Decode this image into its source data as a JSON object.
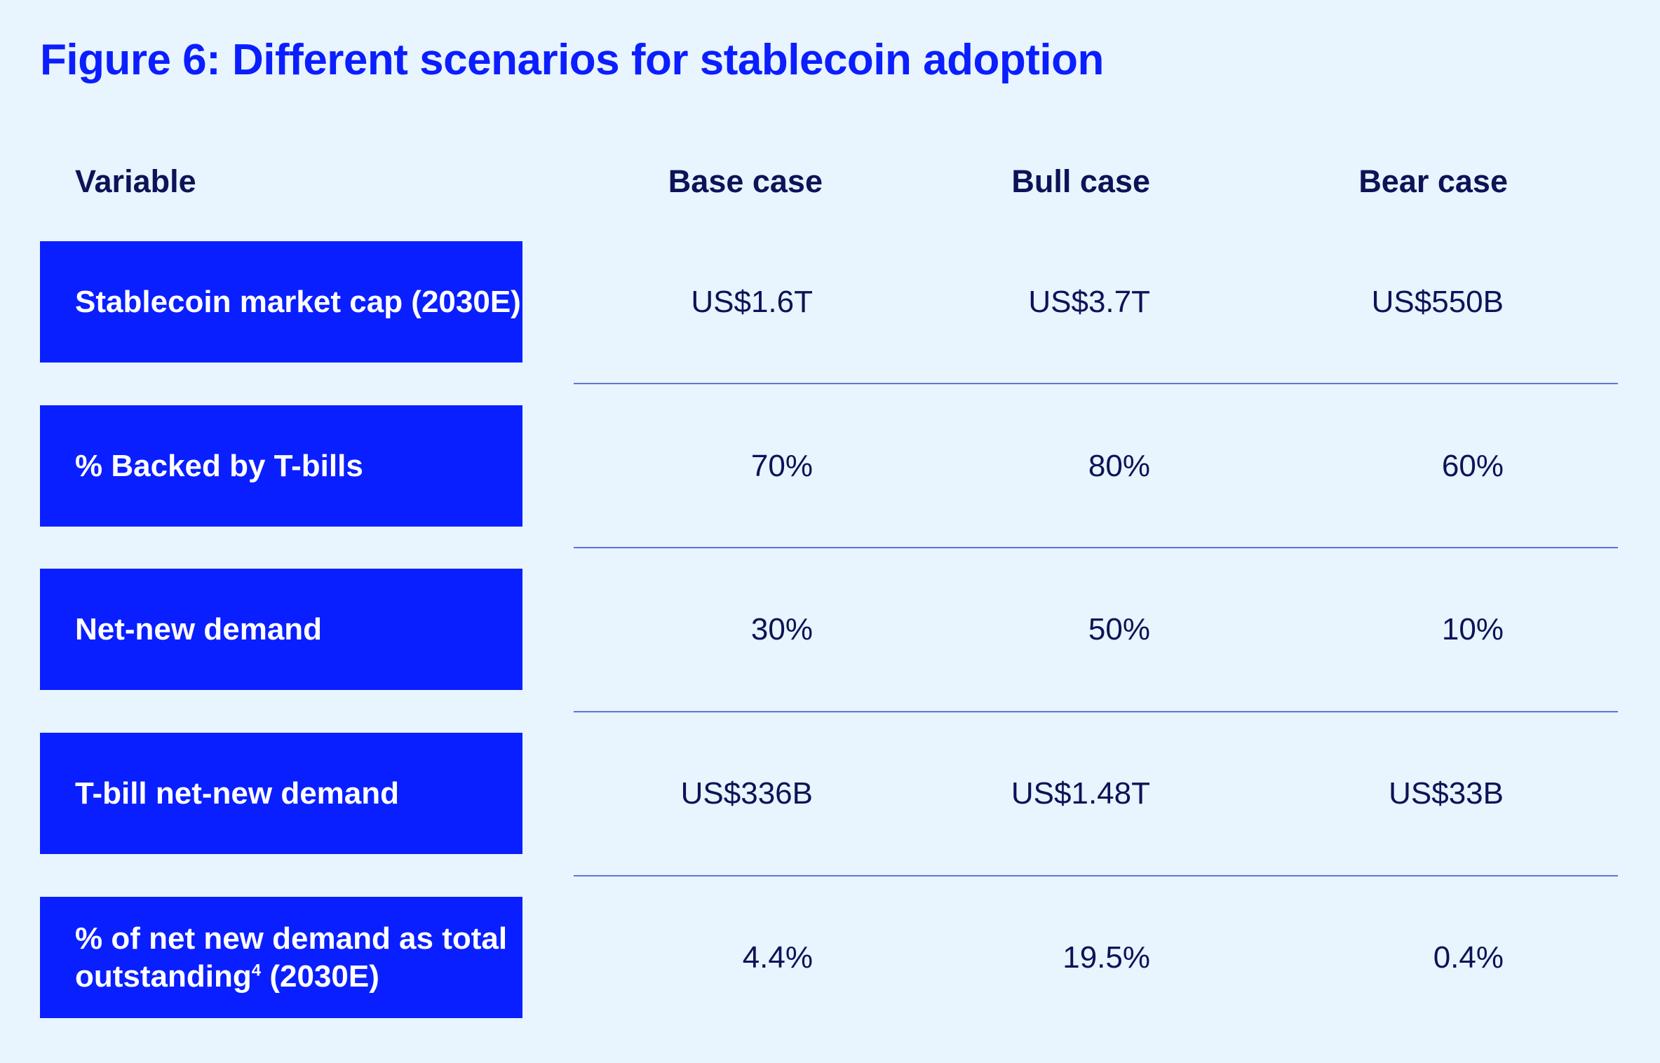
{
  "title": "Figure 6: Different scenarios for stablecoin adoption",
  "table": {
    "headers": [
      "Variable",
      "Base case",
      "Bull case",
      "Bear case"
    ],
    "rows": [
      {
        "label": "Stablecoin market cap (2030E)",
        "base": "US$1.6T",
        "bull": "US$3.7T",
        "bear": "US$550B"
      },
      {
        "label": "% Backed by T-bills",
        "base": "70%",
        "bull": "80%",
        "bear": "60%"
      },
      {
        "label": "Net-new demand",
        "base": "30%",
        "bull": "50%",
        "bear": "10%"
      },
      {
        "label": "T-bill net-new demand",
        "base": "US$336B",
        "bull": "US$1.48T",
        "bear": "US$33B"
      },
      {
        "label_pre": "% of net new demand as total outstanding",
        "label_sup": "4",
        "label_post": " (2030E)",
        "base": "4.4%",
        "bull": "19.5%",
        "bear": "0.4%"
      }
    ]
  },
  "colors": {
    "background": "#e8f4fe",
    "accent": "#0a1fff",
    "text": "#0d1357"
  }
}
